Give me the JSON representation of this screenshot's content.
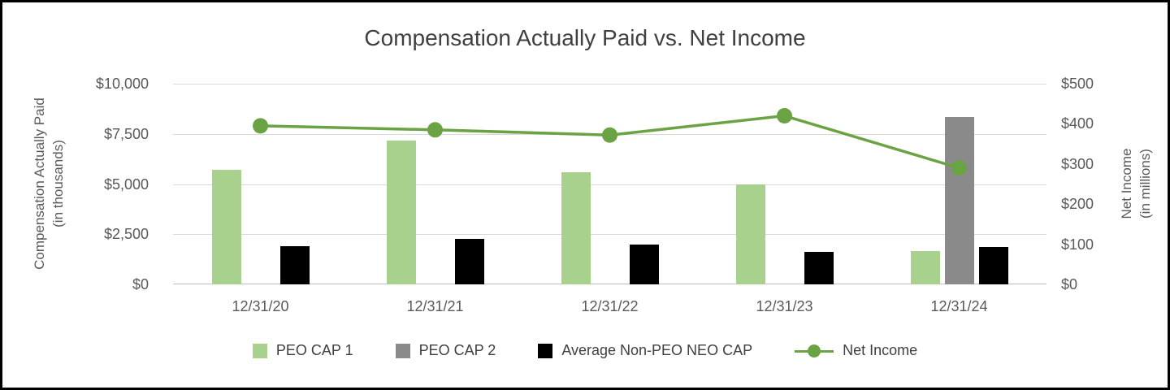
{
  "chart_data": {
    "type": "bar",
    "title": "Compensation Actually Paid vs. Net Income",
    "categories": [
      "12/31/20",
      "12/31/21",
      "12/31/22",
      "12/31/23",
      "12/31/24"
    ],
    "series": [
      {
        "name": "PEO CAP 1",
        "type": "bar",
        "axis": "left",
        "color": "#a9d18e",
        "values": [
          5700,
          7150,
          5600,
          5000,
          1650
        ]
      },
      {
        "name": "PEO CAP 2",
        "type": "bar",
        "axis": "left",
        "color": "#8a8a8a",
        "values": [
          null,
          null,
          null,
          null,
          8350
        ]
      },
      {
        "name": "Average Non-PEO NEO CAP",
        "type": "bar",
        "axis": "left",
        "color": "#000000",
        "values": [
          1900,
          2250,
          2000,
          1600,
          1850
        ]
      },
      {
        "name": "Net Income",
        "type": "line",
        "axis": "right",
        "color": "#6aa343",
        "values": [
          395,
          385,
          372,
          420,
          290
        ]
      }
    ],
    "left_axis": {
      "title_lines": [
        "Compensation Actually Paid",
        "(in thousands)"
      ],
      "min": 0,
      "max": 10000,
      "tick_labels": [
        "$0",
        "$2,500",
        "$5,000",
        "$7,500",
        "$10,000"
      ]
    },
    "right_axis": {
      "title_lines": [
        "Net Income",
        "(in millions)"
      ],
      "min": 0,
      "max": 500,
      "tick_labels": [
        "$0",
        "$100",
        "$200",
        "$300",
        "$400",
        "$500"
      ]
    },
    "legend_position": "bottom",
    "grid": "horizontal"
  }
}
